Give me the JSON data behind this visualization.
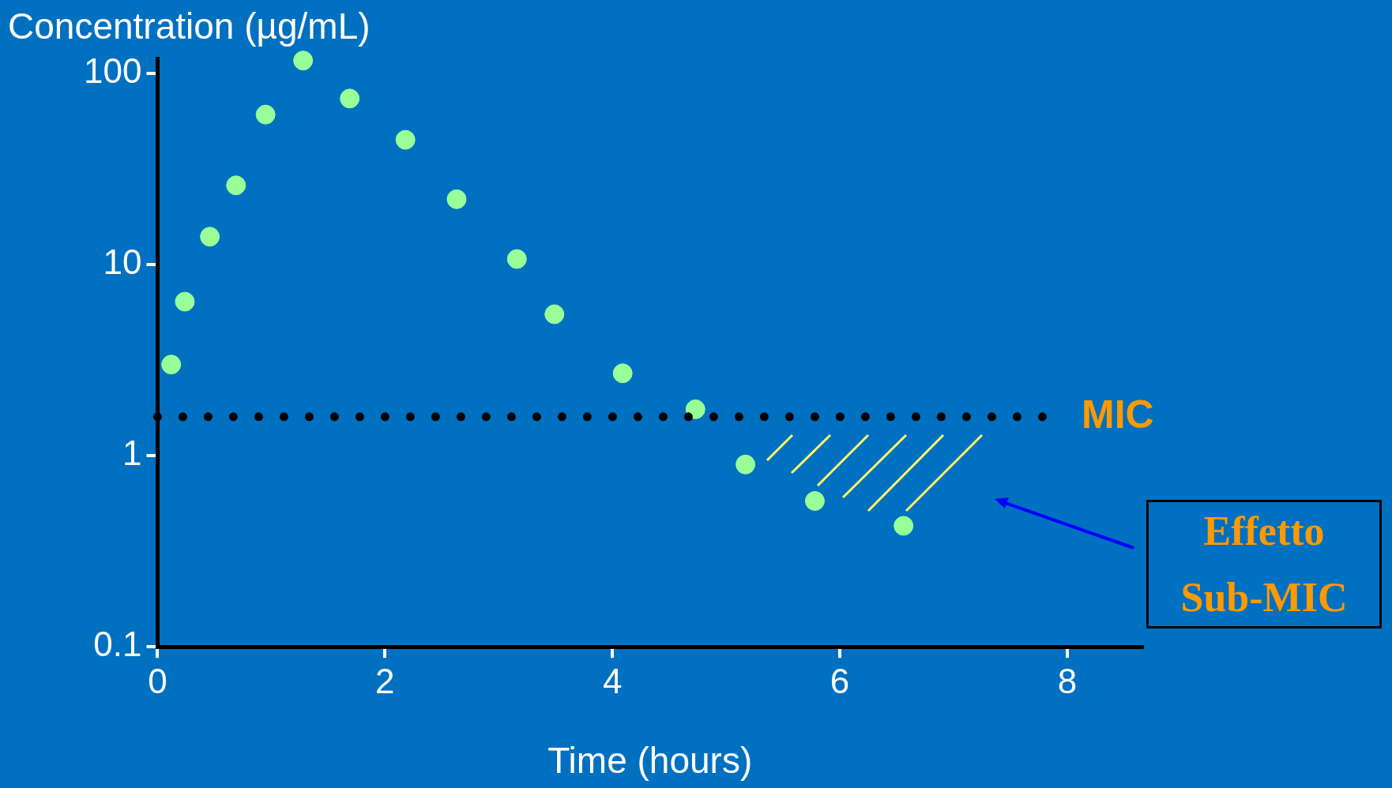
{
  "chart_data": {
    "type": "scatter",
    "ylabel": "Concentration (µg/mL)",
    "xlabel": "Time (hours)",
    "x": [
      0.12,
      0.24,
      0.46,
      0.69,
      0.95,
      1.28,
      1.69,
      2.18,
      2.63,
      3.16,
      3.49,
      4.09,
      4.73,
      5.17,
      5.78,
      6.56
    ],
    "values": [
      3.0,
      6.4,
      14,
      26,
      61,
      117,
      74,
      45,
      22,
      10.7,
      5.5,
      2.7,
      1.75,
      0.9,
      0.58,
      0.43
    ],
    "color": "#99ff99",
    "marker": "circle",
    "log": "y",
    "grid": false,
    "legend": false,
    "xlim": [
      0,
      8.66
    ],
    "xticks": [
      0,
      2,
      4,
      6,
      8
    ],
    "ylim": [
      0.1,
      120
    ],
    "yticks": [
      {
        "value": 0.1,
        "label": "0.1"
      },
      {
        "value": 1,
        "label": "1"
      },
      {
        "value": 10,
        "label": "10"
      },
      {
        "value": 100,
        "label": "100"
      }
    ],
    "ref_lines": [
      {
        "axis": "y",
        "value": 1.6,
        "label": "MIC",
        "color": "#000000",
        "line_style": "dotted"
      }
    ],
    "annotations": [
      "Effetto Sub-MIC"
    ]
  }
}
